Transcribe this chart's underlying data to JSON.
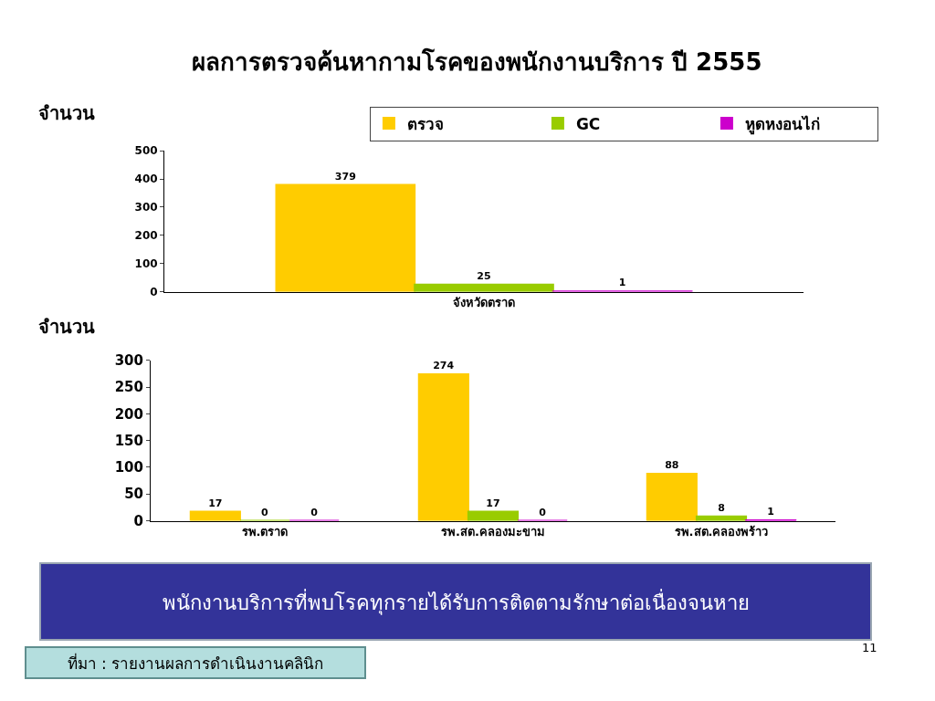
{
  "chart_data": [
    {
      "type": "bar",
      "title": "ผลการตรวจค้นหากามโรคของพนักงานบริการ ปี 2555",
      "ylabel": "จำนวน",
      "categories": [
        "จังหวัดตราด"
      ],
      "series": [
        {
          "name": "ตรวจ",
          "color": "#ffcc00",
          "values": [
            379
          ]
        },
        {
          "name": "GC",
          "color": "#99cc00",
          "values": [
            25
          ]
        },
        {
          "name": "หูดหงอนไก่",
          "color": "#cc00cc",
          "values": [
            1
          ]
        }
      ],
      "ylim": [
        0,
        500
      ],
      "yticks": [
        0,
        100,
        200,
        300,
        400,
        500
      ],
      "data_labels": true,
      "grid": false,
      "legend": "top right"
    },
    {
      "type": "bar",
      "ylabel": "จำนวน",
      "categories": [
        "รพ.ตราด",
        "รพ.สต.คลองมะขาม",
        "รพ.สต.คลองพร้าว"
      ],
      "series": [
        {
          "color": "#ffcc00",
          "values": [
            17,
            274,
            88
          ]
        },
        {
          "color": "#99cc00",
          "values": [
            0,
            17,
            8
          ]
        },
        {
          "color": "#cc00cc",
          "values": [
            0,
            0,
            1
          ]
        }
      ],
      "ylim": [
        0,
        300
      ],
      "yticks": [
        0,
        50,
        100,
        150,
        200,
        250,
        300
      ],
      "data_labels": true,
      "grid": false,
      "annotations": [
        "พนักงานบริการที่พบโรคทุกรายได้รับการติดตามรักษาต่อเนื่องจนหาย",
        "ที่มา : รายงานผลการดำเนินงานคลินิก",
        "11"
      ]
    }
  ]
}
